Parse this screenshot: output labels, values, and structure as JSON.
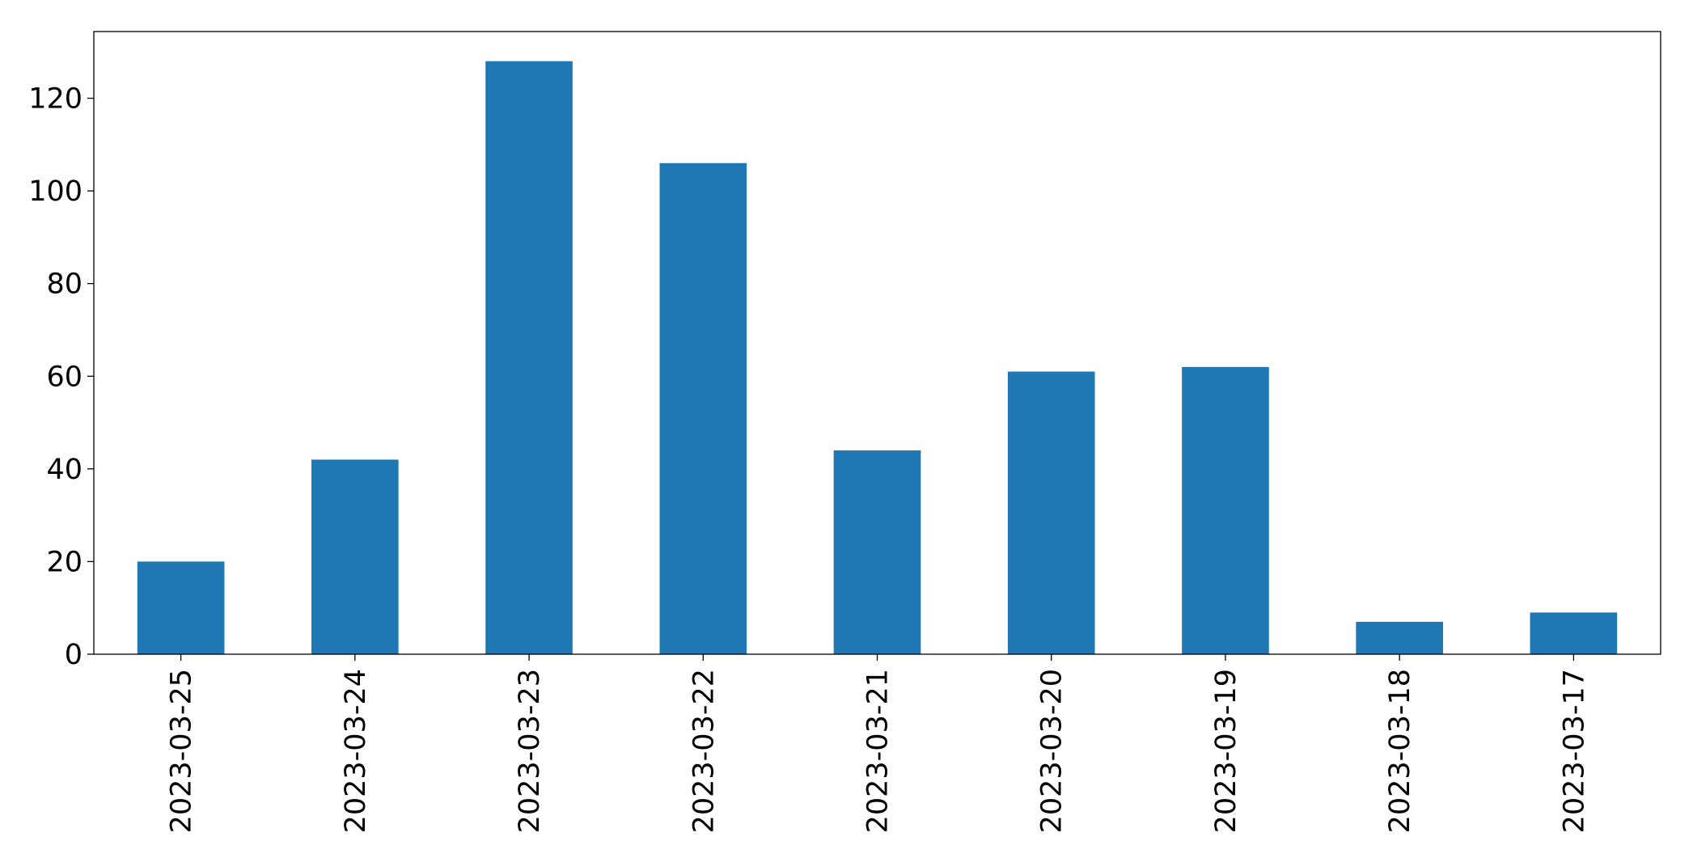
{
  "chart_data": {
    "type": "bar",
    "categories": [
      "2023-03-25",
      "2023-03-24",
      "2023-03-23",
      "2023-03-22",
      "2023-03-21",
      "2023-03-20",
      "2023-03-19",
      "2023-03-18",
      "2023-03-17"
    ],
    "values": [
      20,
      42,
      128,
      106,
      44,
      61,
      62,
      7,
      9
    ],
    "color": "#1f77b4",
    "ylim": [
      0,
      134.4
    ],
    "yticks": [
      0,
      20,
      40,
      60,
      80,
      100,
      120
    ],
    "grid": false
  }
}
